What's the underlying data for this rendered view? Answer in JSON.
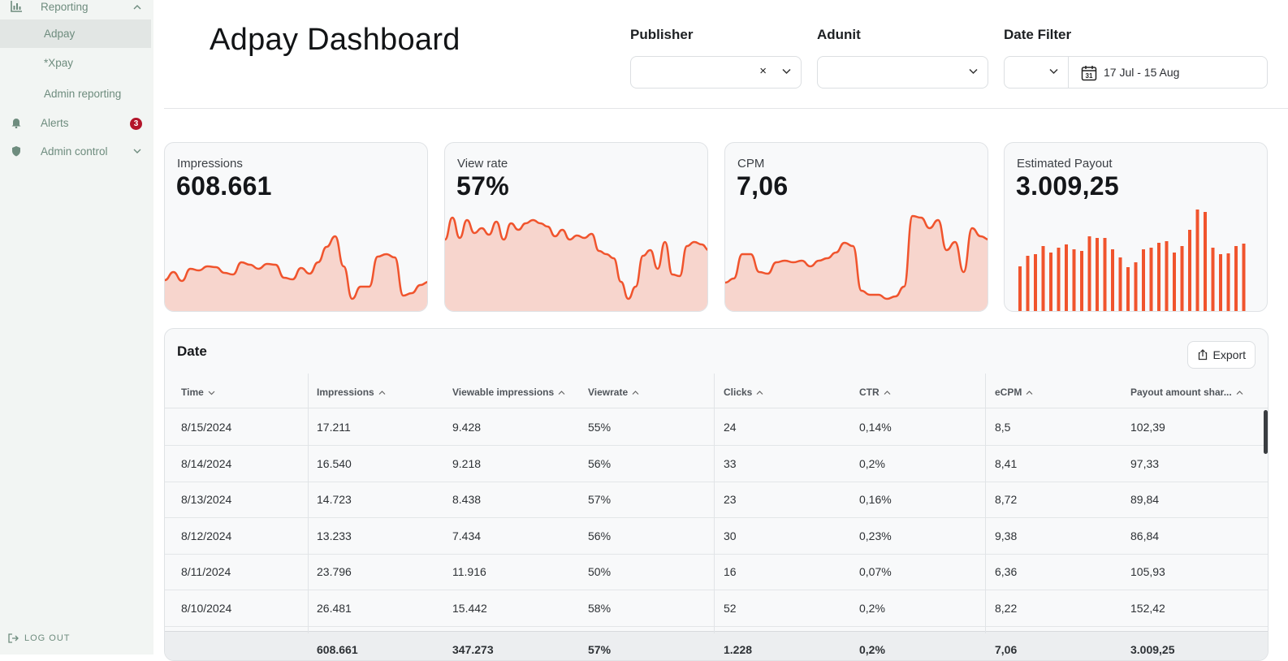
{
  "sidebar": {
    "reporting_label": "Reporting",
    "items": [
      {
        "label": "Adpay"
      },
      {
        "label": "*Xpay"
      },
      {
        "label": "Admin reporting"
      }
    ],
    "alerts_label": "Alerts",
    "alerts_badge": "3",
    "admin_label": "Admin control",
    "logout_label": "LOG OUT"
  },
  "header": {
    "title": "Adpay Dashboard",
    "publisher_label": "Publisher",
    "publisher_clear": "×",
    "adunit_label": "Adunit",
    "date_filter_label": "Date Filter",
    "date_range": "17 Jul - 15 Aug",
    "calendar_day": "31"
  },
  "cards": [
    {
      "label": "Impressions",
      "value": "608.661"
    },
    {
      "label": "View rate",
      "value": "57%"
    },
    {
      "label": "CPM",
      "value": "7,06"
    },
    {
      "label": "Estimated Payout",
      "value": "3.009,25"
    }
  ],
  "sparklines": {
    "impressions": [
      38,
      48,
      37,
      52,
      50,
      55,
      54,
      47,
      45,
      60,
      57,
      52,
      58,
      57,
      41,
      39,
      53,
      46,
      60,
      79,
      92,
      55,
      15,
      30,
      30,
      67,
      70,
      66,
      19,
      22,
      32,
      36
    ],
    "view_rate": [
      88,
      115,
      90,
      112,
      96,
      102,
      94,
      110,
      88,
      108,
      100,
      108,
      112,
      108,
      104,
      92,
      100,
      88,
      93,
      90,
      95,
      74,
      70,
      65,
      36,
      15,
      30,
      68,
      75,
      52,
      85,
      45,
      43,
      80,
      85,
      82,
      75
    ],
    "cpm": [
      35,
      40,
      70,
      70,
      48,
      46,
      60,
      62,
      60,
      62,
      55,
      62,
      65,
      72,
      84,
      80,
      25,
      20,
      20,
      15,
      18,
      30,
      117,
      115,
      102,
      112,
      75,
      85,
      48,
      102,
      92,
      88
    ],
    "payout": [
      55,
      68,
      70,
      80,
      72,
      78,
      82,
      76,
      74,
      92,
      90,
      90,
      76,
      66,
      54,
      60,
      76,
      78,
      84,
      86,
      72,
      80,
      100,
      125,
      122,
      78,
      70,
      71,
      80,
      83
    ]
  },
  "colors": {
    "accent": "#f0542d",
    "accent_fill": "#f7d5cd",
    "badge": "#b3152a"
  },
  "table": {
    "title": "Date",
    "export_label": "Export",
    "columns": [
      "Time",
      "Impressions",
      "Viewable impressions",
      "Viewrate",
      "Clicks",
      "CTR",
      "eCPM",
      "Payout amount shar..."
    ],
    "rows": [
      [
        "8/15/2024",
        "17.211",
        "9.428",
        "55%",
        "24",
        "0,14%",
        "8,5",
        "102,39"
      ],
      [
        "8/14/2024",
        "16.540",
        "9.218",
        "56%",
        "33",
        "0,2%",
        "8,41",
        "97,33"
      ],
      [
        "8/13/2024",
        "14.723",
        "8.438",
        "57%",
        "23",
        "0,16%",
        "8,72",
        "89,84"
      ],
      [
        "8/12/2024",
        "13.233",
        "7.434",
        "56%",
        "30",
        "0,23%",
        "9,38",
        "86,84"
      ],
      [
        "8/11/2024",
        "23.796",
        "11.916",
        "50%",
        "16",
        "0,07%",
        "6,36",
        "105,93"
      ],
      [
        "8/10/2024",
        "26.481",
        "15.442",
        "58%",
        "52",
        "0,2%",
        "8,22",
        "152,42"
      ]
    ],
    "totals": [
      "",
      "608.661",
      "347.273",
      "57%",
      "1.228",
      "0,2%",
      "7,06",
      "3.009,25"
    ]
  }
}
